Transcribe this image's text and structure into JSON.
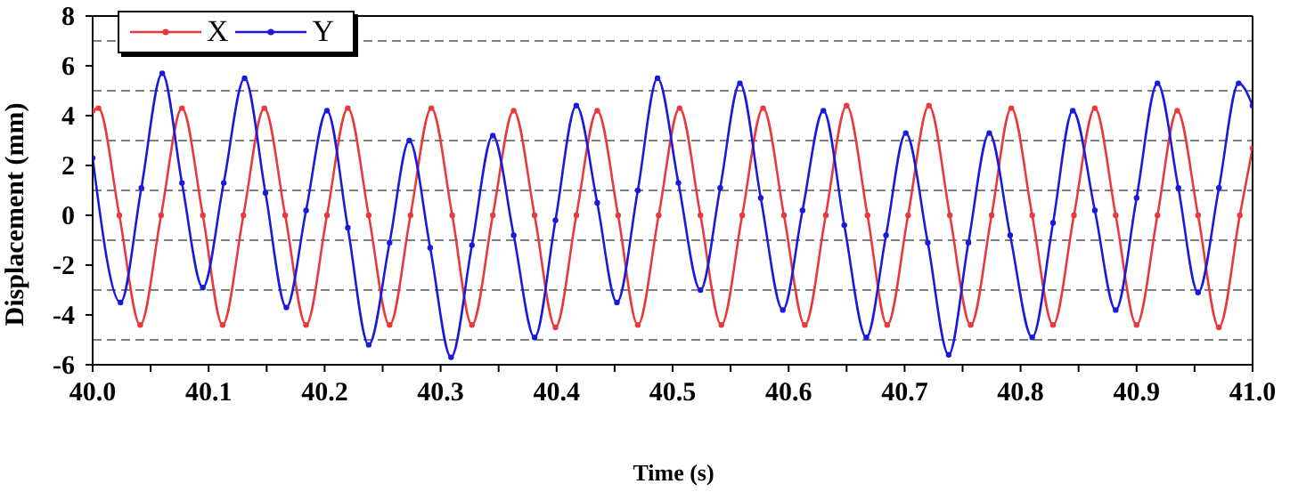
{
  "chart_data": {
    "type": "line",
    "xlabel": "Time (s)",
    "ylabel": "Displacement (mm)",
    "xlim": [
      40,
      41
    ],
    "ylim": [
      -6,
      8
    ],
    "xticks": [
      {
        "value": 40,
        "label": "40.0"
      },
      {
        "value": 40.05,
        "label": null
      },
      40.1,
      {
        "value": 40.15,
        "label": null
      },
      40.2,
      {
        "value": 40.25,
        "label": null
      },
      40.3,
      {
        "value": 40.35,
        "label": null
      },
      40.4,
      {
        "value": 40.45,
        "label": null
      },
      40.5,
      {
        "value": 40.55,
        "label": null
      },
      40.6,
      {
        "value": 40.65,
        "label": null
      },
      40.7,
      {
        "value": 40.75,
        "label": null
      },
      40.8,
      {
        "value": 40.85,
        "label": null
      },
      40.9,
      {
        "value": 40.95,
        "label": null
      },
      {
        "value": 41,
        "label": "41.0"
      }
    ],
    "yticks": [
      -6,
      -4,
      -2,
      0,
      2,
      4,
      6,
      8
    ],
    "legend": "top left",
    "marker": "circle",
    "line_style": "solid",
    "ref_lines": [
      {
        "axis": "y",
        "value": 7,
        "color": "#808080",
        "line_style": "dashed"
      },
      {
        "axis": "y",
        "value": 5,
        "color": "#808080",
        "line_style": "dashed"
      },
      {
        "axis": "y",
        "value": 3,
        "color": "#808080",
        "line_style": "dashed"
      },
      {
        "axis": "y",
        "value": 1,
        "color": "#808080",
        "line_style": "dashed"
      },
      {
        "axis": "y",
        "value": -1,
        "color": "#808080",
        "line_style": "dashed"
      },
      {
        "axis": "y",
        "value": -3,
        "color": "#808080",
        "line_style": "dashed"
      },
      {
        "axis": "y",
        "value": -5,
        "color": "#808080",
        "line_style": "dashed"
      }
    ],
    "series": [
      {
        "name": "X",
        "color": "#e8393c",
        "x": [
          40.0,
          40.005,
          40.023,
          40.041,
          40.059,
          40.077,
          40.095,
          40.112,
          40.13,
          40.148,
          40.166,
          40.184,
          40.202,
          40.22,
          40.238,
          40.256,
          40.274,
          40.292,
          40.31,
          40.327,
          40.345,
          40.363,
          40.381,
          40.399,
          40.417,
          40.435,
          40.453,
          40.47,
          40.488,
          40.506,
          40.524,
          40.542,
          40.56,
          40.578,
          40.596,
          40.614,
          40.632,
          40.65,
          40.668,
          40.685,
          40.703,
          40.721,
          40.739,
          40.757,
          40.775,
          40.792,
          40.81,
          40.828,
          40.846,
          40.864,
          40.882,
          40.9,
          40.918,
          40.935,
          40.953,
          40.971,
          40.989,
          41.0
        ],
        "values": [
          4.2,
          4.3,
          0,
          -4.4,
          0,
          4.3,
          0,
          -4.4,
          0,
          4.3,
          0,
          -4.4,
          0,
          4.3,
          0,
          -4.4,
          0,
          4.3,
          0,
          -4.4,
          0,
          4.2,
          0,
          -4.5,
          0,
          4.2,
          0,
          -4.4,
          0,
          4.3,
          0,
          -4.4,
          0,
          4.3,
          0,
          -4.4,
          0,
          4.4,
          0,
          -4.4,
          0,
          4.4,
          0,
          -4.4,
          0,
          4.3,
          0,
          -4.4,
          0,
          4.3,
          0,
          -4.4,
          0,
          4.2,
          0,
          -4.5,
          0,
          2.7
        ]
      },
      {
        "name": "Y",
        "color": "#1a1adc",
        "x": [
          40.0,
          40.024,
          40.042,
          40.06,
          40.077,
          40.095,
          40.113,
          40.131,
          40.149,
          40.167,
          40.184,
          40.202,
          40.22,
          40.238,
          40.256,
          40.273,
          40.291,
          40.309,
          40.327,
          40.345,
          40.363,
          40.381,
          40.399,
          40.417,
          40.435,
          40.452,
          40.47,
          40.487,
          40.505,
          40.524,
          40.541,
          40.558,
          40.576,
          40.595,
          40.612,
          40.63,
          40.648,
          40.667,
          40.684,
          40.701,
          40.72,
          40.738,
          40.755,
          40.773,
          40.791,
          40.81,
          40.828,
          40.845,
          40.864,
          40.882,
          40.9,
          40.918,
          40.936,
          40.953,
          40.971,
          40.988,
          41.0
        ],
        "values": [
          2.3,
          -3.5,
          1.1,
          5.7,
          1.3,
          -2.9,
          1.3,
          5.5,
          0.9,
          -3.7,
          0.2,
          4.2,
          -0.5,
          -5.2,
          -1.1,
          3.0,
          -1.3,
          -5.7,
          -1.2,
          3.2,
          -0.8,
          -4.9,
          -0.2,
          4.4,
          0.5,
          -3.5,
          1.0,
          5.5,
          1.3,
          -3.0,
          1.1,
          5.3,
          0.7,
          -3.8,
          0.2,
          4.2,
          -0.4,
          -4.9,
          -0.8,
          3.3,
          -1.1,
          -5.6,
          -1.1,
          3.3,
          -0.8,
          -4.9,
          -0.3,
          4.2,
          0.2,
          -3.8,
          0.7,
          5.3,
          1.1,
          -3.1,
          1.1,
          5.3,
          4.4
        ]
      }
    ]
  }
}
